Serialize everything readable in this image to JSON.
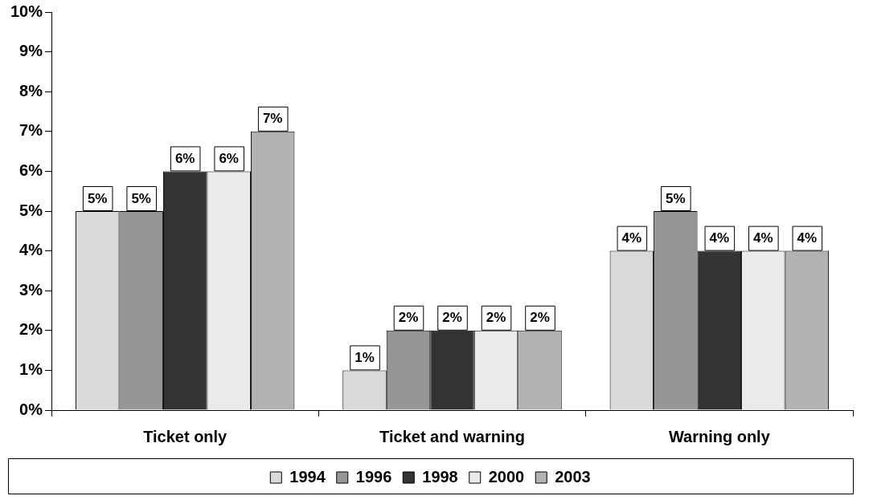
{
  "chart_data": {
    "type": "bar",
    "categories": [
      "Ticket only",
      "Ticket and warning",
      "Warning only"
    ],
    "series": [
      {
        "name": "1994",
        "color": "#d9d9d9",
        "values": [
          5,
          1,
          4
        ],
        "value_labels": [
          "5%",
          "1%",
          "4%"
        ]
      },
      {
        "name": "1996",
        "color": "#969696",
        "values": [
          5,
          2,
          5
        ],
        "value_labels": [
          "5%",
          "2%",
          "5%"
        ]
      },
      {
        "name": "1998",
        "color": "#333333",
        "values": [
          6,
          2,
          4
        ],
        "value_labels": [
          "6%",
          "2%",
          "4%"
        ]
      },
      {
        "name": "2000",
        "color": "#eaeaea",
        "values": [
          6,
          2,
          4
        ],
        "value_labels": [
          "6%",
          "2%",
          "4%"
        ]
      },
      {
        "name": "2003",
        "color": "#b2b2b2",
        "values": [
          7,
          2,
          4
        ],
        "value_labels": [
          "7%",
          "2%",
          "4%"
        ]
      }
    ],
    "ylim": [
      0,
      10
    ],
    "yticks": [
      {
        "value": 0,
        "label": "0%"
      },
      {
        "value": 1,
        "label": "1%"
      },
      {
        "value": 2,
        "label": "2%"
      },
      {
        "value": 3,
        "label": "3%"
      },
      {
        "value": 4,
        "label": "4%"
      },
      {
        "value": 5,
        "label": "5%"
      },
      {
        "value": 6,
        "label": "6%"
      },
      {
        "value": 7,
        "label": "7%"
      },
      {
        "value": 8,
        "label": "8%"
      },
      {
        "value": 9,
        "label": "9%"
      },
      {
        "value": 10,
        "label": "10%"
      }
    ],
    "grid": false,
    "legend": "bottom"
  }
}
